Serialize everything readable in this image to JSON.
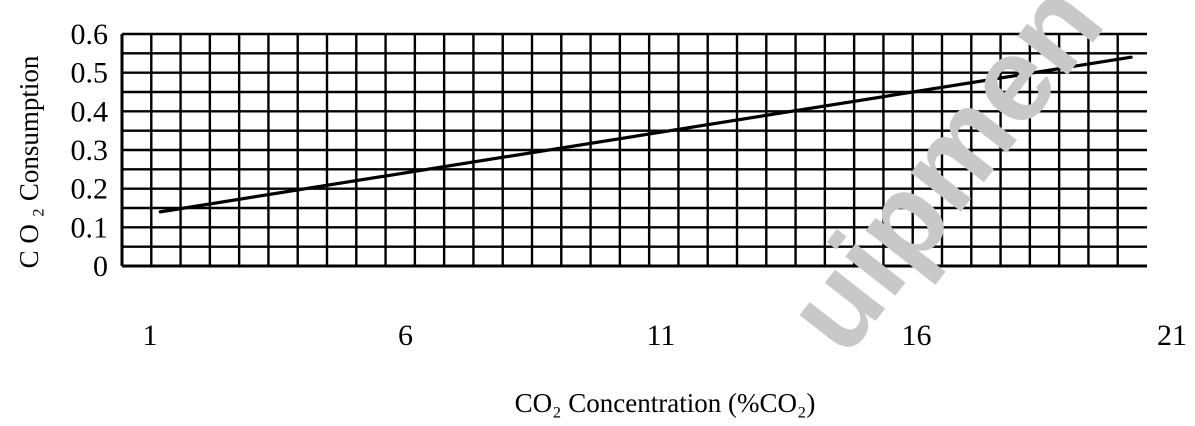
{
  "chart_data": {
    "type": "line",
    "xlabel": "CO₂ Concentration (%CO₂)",
    "ylabel": "C O ₂ Consumption",
    "x_ticks": [
      "1",
      "6",
      "11",
      "16",
      "21"
    ],
    "y_ticks": [
      "0",
      "0.1",
      "0.2",
      "0.3",
      "0.4",
      "0.5",
      "0.6"
    ],
    "xlim": [
      1,
      21
    ],
    "ylim": [
      0,
      0.6
    ],
    "grid": true,
    "series": [
      {
        "x": [
          1.2,
          20.2
        ],
        "y": [
          0.14,
          0.54
        ],
        "color": "#000000"
      }
    ]
  },
  "watermark": {
    "text": "uipmen",
    "color": "#c8c8c8"
  }
}
